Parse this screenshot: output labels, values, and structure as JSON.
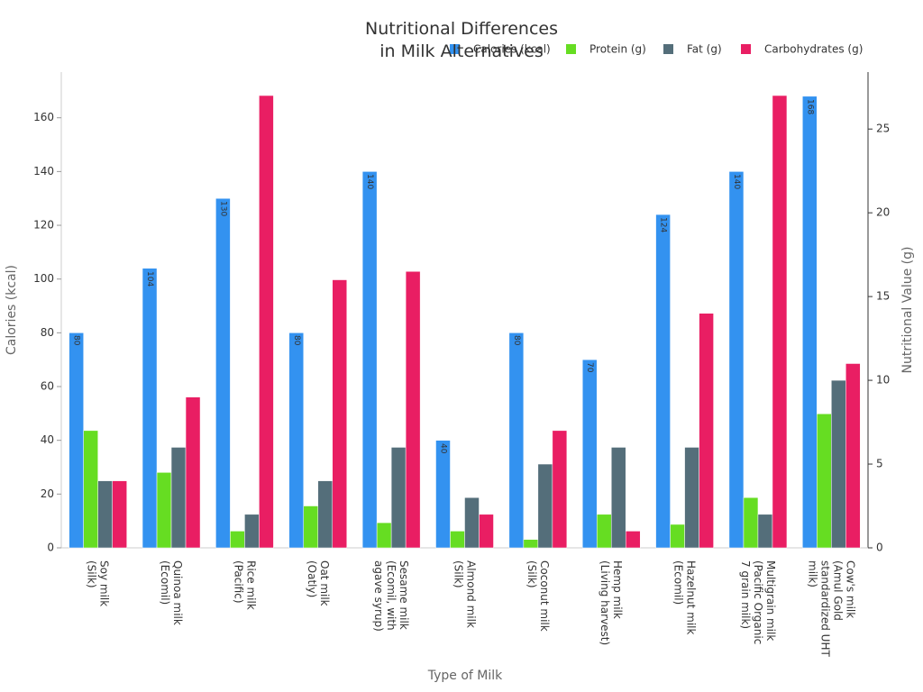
{
  "chart_data": {
    "type": "bar",
    "title": "Nutritional Differences\nin Milk Alternatives",
    "x_label": "Type of Milk",
    "y_label": "Calories (kcal)",
    "y2_label": "Nutritional Value (g)",
    "categories": [
      "Soy milk\n(Silk)",
      "Quinoa milk\n(Ecomil)",
      "Rice milk\n(Pacific)",
      "Oat milk\n(Oatly)",
      "Sesame milk\n(Ecomil, with\nagave syrup)",
      "Almond milk\n(Silk)",
      "Coconut milk\n(Silk)",
      "Hemp milk\n(Living harvest)",
      "Hazelnut milk\n(Ecomil)",
      "Multigrain milk\n(Pacific Organic\n7 grain milk)",
      "Cow's milk\n(Amul Gold\nstandardized UHT\nmilk)"
    ],
    "series": [
      {
        "name": "Calories (kcal)",
        "color": "#3392f0",
        "values": [
          80,
          104,
          130,
          80,
          140,
          40,
          80,
          70,
          124,
          140,
          168
        ]
      },
      {
        "name": "Protein (g)",
        "color": "#66dd22",
        "axis": "y2",
        "values": [
          7,
          4.5,
          1,
          2.5,
          1.5,
          1,
          0.5,
          2,
          1.4,
          3,
          8
        ]
      },
      {
        "name": "Fat (g)",
        "color": "#546e7a",
        "axis": "y2",
        "values": [
          4,
          6,
          2,
          4,
          6,
          3,
          5,
          6,
          6,
          2,
          10
        ]
      },
      {
        "name": "Carbohydrates (g)",
        "color": "#e91e63",
        "axis": "y2",
        "values": [
          4,
          9,
          27,
          16,
          16.5,
          2,
          7,
          1,
          14,
          27,
          11
        ]
      }
    ],
    "ylim": [
      0,
      177
    ],
    "yticks": [
      0,
      20,
      40,
      60,
      80,
      100,
      120,
      140,
      160
    ],
    "y2lim": [
      0,
      28.4
    ],
    "y2ticks": [
      0,
      5,
      10,
      15,
      20,
      25
    ],
    "legend": "top"
  }
}
